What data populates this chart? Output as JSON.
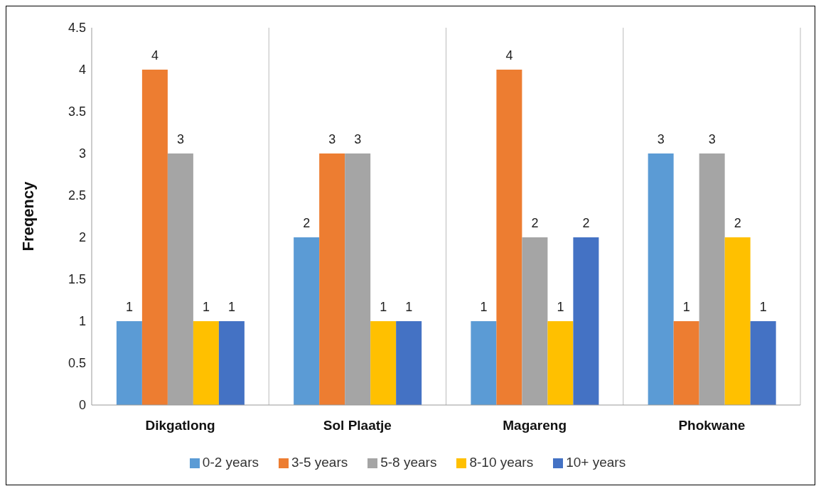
{
  "chart_data": {
    "type": "bar",
    "ylabel": "Freqency",
    "categories": [
      "Dikgatlong",
      "Sol Plaatje",
      "Magareng",
      "Phokwane"
    ],
    "series": [
      {
        "name": "0-2 years",
        "color": "#5b9bd5",
        "values": [
          1,
          2,
          1,
          3
        ]
      },
      {
        "name": "3-5 years",
        "color": "#ed7d31",
        "values": [
          4,
          3,
          4,
          1
        ]
      },
      {
        "name": "5-8 years",
        "color": "#a5a5a5",
        "values": [
          3,
          3,
          2,
          3
        ]
      },
      {
        "name": "8-10 years",
        "color": "#ffc000",
        "values": [
          1,
          1,
          1,
          2
        ]
      },
      {
        "name": "10+ years",
        "color": "#4472c4",
        "values": [
          1,
          1,
          2,
          1
        ]
      }
    ],
    "ylim": [
      0,
      4.5
    ],
    "yticks": [
      0,
      0.5,
      1,
      1.5,
      2,
      2.5,
      3,
      3.5,
      4,
      4.5
    ],
    "grid": "x",
    "legend": "bottom",
    "data_labels": true
  }
}
